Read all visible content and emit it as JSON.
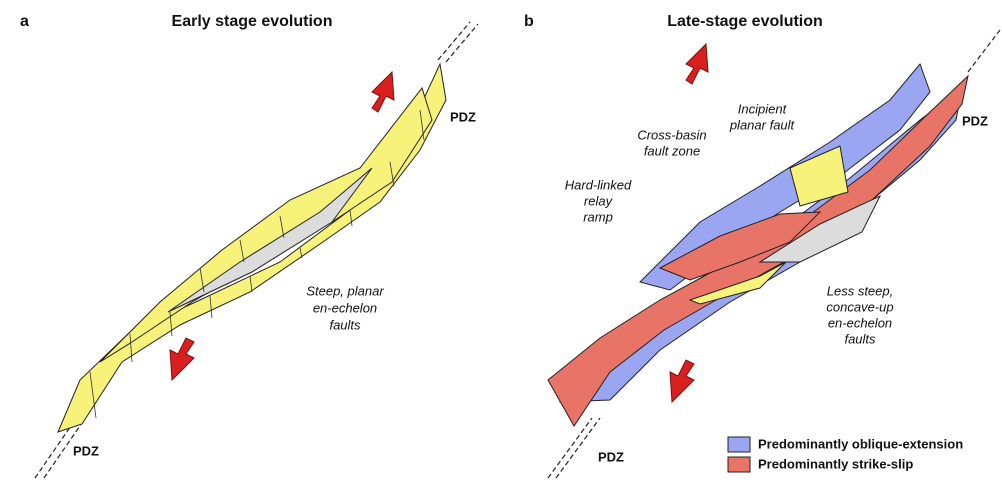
{
  "panels": [
    {
      "letter": "a",
      "title": "Early stage evolution",
      "pdz_top": "PDZ",
      "pdz_bottom": "PDZ",
      "annotations": [
        {
          "lines": [
            "Steep, planar",
            "en-echelon",
            "faults"
          ]
        }
      ]
    },
    {
      "letter": "b",
      "title": "Late-stage evolution",
      "pdz_top": "PDZ",
      "pdz_bottom": "PDZ",
      "annotations": [
        {
          "lines": [
            "Incipient",
            "planar fault"
          ]
        },
        {
          "lines": [
            "Cross-basin",
            "fault zone"
          ]
        },
        {
          "lines": [
            "Hard-linked",
            "relay",
            "ramp"
          ]
        },
        {
          "lines": [
            "Less steep,",
            "concave-up",
            "en-echelon",
            "faults"
          ]
        }
      ]
    }
  ],
  "legend": [
    {
      "label": "Predominantly oblique-extension",
      "color": "#9aa6f2"
    },
    {
      "label": "Predominantly strike-slip",
      "color": "#e87468"
    }
  ]
}
